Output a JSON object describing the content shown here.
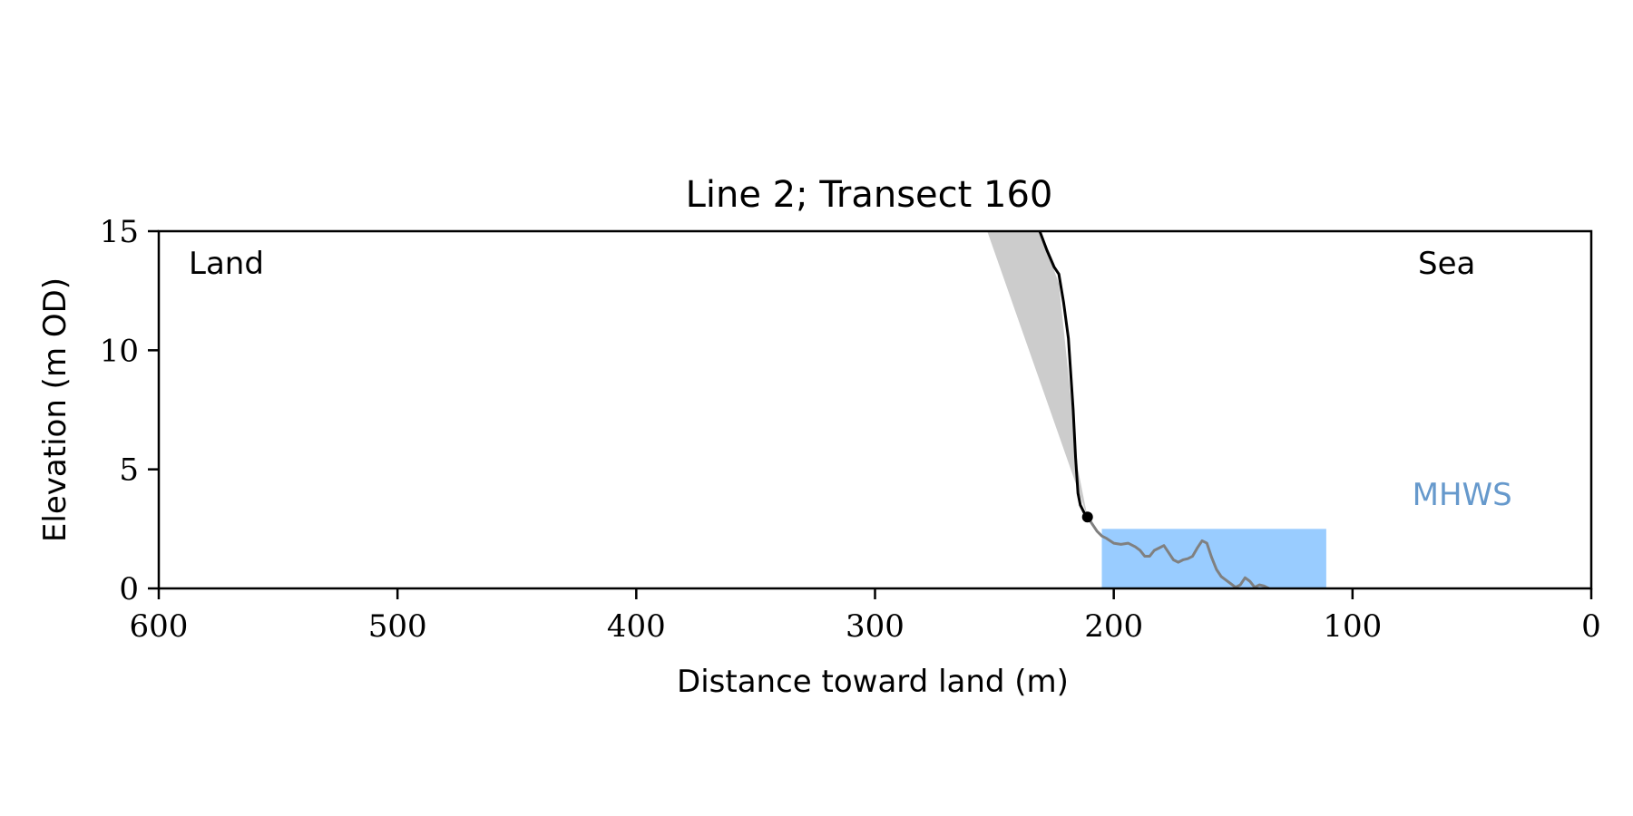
{
  "chart_data": {
    "type": "line",
    "title": "Line 2; Transect 160",
    "xlabel": "Distance toward land (m)",
    "ylabel": "Elevation (m OD)",
    "xlim": [
      600,
      0
    ],
    "ylim": [
      0,
      15
    ],
    "x_ticks": [
      600,
      500,
      400,
      300,
      200,
      100,
      0
    ],
    "y_ticks": [
      0,
      5,
      10,
      15
    ],
    "grid": false,
    "annotations": {
      "left": "Land",
      "right": "Sea",
      "water_level": "MHWS"
    },
    "colors": {
      "cliff": "#000000",
      "foreshore": "#808080",
      "wedge": "#cccccc",
      "water": "#99ccff",
      "mhws_label": "#6699cc"
    },
    "water_band": {
      "x_start": 205,
      "x_end": 111,
      "elevation": 2.5
    },
    "mhws_label_position": {
      "x": 75,
      "y": 3.5
    },
    "cliff_toe": {
      "x": 211,
      "y": 3.0
    },
    "wedge_polygon": [
      [
        253,
        15
      ],
      [
        231,
        15
      ],
      [
        228,
        14.2
      ],
      [
        223,
        12.8
      ],
      [
        219,
        9
      ],
      [
        215,
        5
      ],
      [
        211,
        3.0
      ]
    ],
    "series": [
      {
        "x": [
          231,
          228,
          225,
          223,
          221,
          219,
          218,
          217,
          216,
          215,
          214,
          213,
          212,
          211
        ],
        "y": [
          15.0,
          14.2,
          13.5,
          13.2,
          12.0,
          10.5,
          9.0,
          7.5,
          5.5,
          4.0,
          3.5,
          3.3,
          3.1,
          3.0
        ]
      },
      {
        "x": [
          211,
          209,
          207,
          205,
          203,
          200,
          197,
          194,
          191,
          189,
          187,
          185,
          183,
          181,
          179,
          177,
          175,
          173,
          171,
          169,
          167,
          165,
          163,
          161,
          160,
          159,
          157,
          155,
          153,
          151,
          149,
          147,
          145,
          143,
          141,
          139,
          137,
          135
        ],
        "y": [
          3.0,
          2.7,
          2.4,
          2.2,
          2.1,
          1.9,
          1.85,
          1.9,
          1.75,
          1.6,
          1.35,
          1.35,
          1.6,
          1.7,
          1.8,
          1.5,
          1.2,
          1.1,
          1.2,
          1.25,
          1.35,
          1.7,
          2.0,
          1.9,
          1.6,
          1.3,
          0.8,
          0.5,
          0.35,
          0.2,
          0.05,
          0.15,
          0.45,
          0.3,
          0.05,
          0.15,
          0.1,
          0.0
        ]
      }
    ]
  }
}
